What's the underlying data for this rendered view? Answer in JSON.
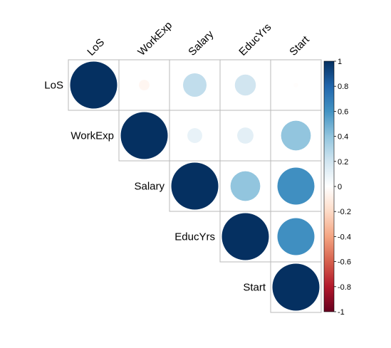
{
  "chart_data": {
    "type": "heatmap",
    "subtype": "correlation-circles-upper-triangle",
    "variables": [
      "LoS",
      "WorkExp",
      "Salary",
      "EducYrs",
      "Start"
    ],
    "matrix": [
      [
        1.0,
        -0.05,
        0.25,
        0.2,
        -0.01
      ],
      [
        -0.05,
        1.0,
        0.1,
        0.12,
        0.4
      ],
      [
        0.25,
        0.1,
        1.0,
        0.4,
        0.62
      ],
      [
        0.2,
        0.12,
        0.4,
        1.0,
        0.62
      ],
      [
        -0.01,
        0.4,
        0.62,
        0.62,
        1.0
      ]
    ],
    "colorbar": {
      "range": [
        -1,
        1
      ],
      "ticks": [
        "1",
        "0.8",
        "0.6",
        "0.4",
        "0.2",
        "0",
        "-0.2",
        "-0.4",
        "-0.6",
        "-0.8",
        "-1"
      ],
      "stops": [
        {
          "v": -1.0,
          "c": "#67001f"
        },
        {
          "v": -0.8,
          "c": "#b2182b"
        },
        {
          "v": -0.6,
          "c": "#d6604d"
        },
        {
          "v": -0.4,
          "c": "#f4a582"
        },
        {
          "v": -0.2,
          "c": "#fddbc7"
        },
        {
          "v": 0.0,
          "c": "#ffffff"
        },
        {
          "v": 0.2,
          "c": "#d1e5f0"
        },
        {
          "v": 0.4,
          "c": "#92c5de"
        },
        {
          "v": 0.6,
          "c": "#4393c3"
        },
        {
          "v": 0.8,
          "c": "#2166ac"
        },
        {
          "v": 1.0,
          "c": "#053061"
        }
      ]
    },
    "legend_position": "right",
    "grid": true
  }
}
